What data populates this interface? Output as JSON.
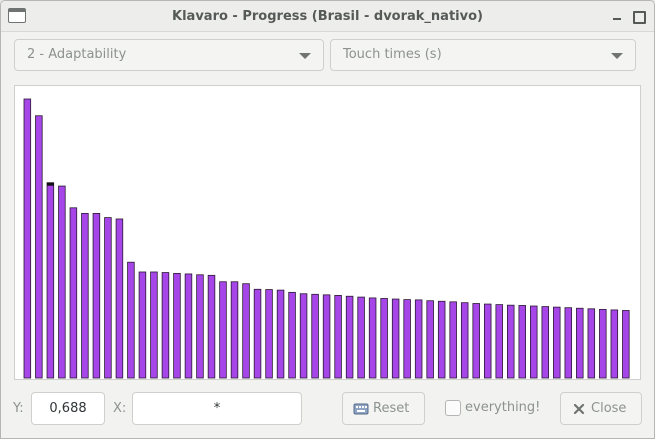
{
  "window": {
    "title": "Klavaro - Progress (Brasil - dvorak_nativo)",
    "icons": {
      "app": "window-icon",
      "minimize": "minimize-icon",
      "maximize": "maximize-icon"
    }
  },
  "controls": {
    "mode_select": {
      "value": "2 - Adaptability"
    },
    "metric_select": {
      "value": "Touch times (s)"
    }
  },
  "chart_data": {
    "type": "bar",
    "colors": {
      "bar": "#a646e8",
      "bar_outline": "#2a1a33",
      "highlight": "#111111"
    },
    "highlight_index": 2,
    "grid": false,
    "values": [
      1.0,
      0.94,
      0.7,
      0.688,
      0.61,
      0.59,
      0.59,
      0.575,
      0.57,
      0.415,
      0.38,
      0.38,
      0.378,
      0.375,
      0.373,
      0.37,
      0.368,
      0.345,
      0.345,
      0.338,
      0.318,
      0.317,
      0.315,
      0.307,
      0.302,
      0.3,
      0.298,
      0.296,
      0.293,
      0.29,
      0.287,
      0.285,
      0.283,
      0.281,
      0.28,
      0.277,
      0.275,
      0.273,
      0.27,
      0.267,
      0.265,
      0.263,
      0.261,
      0.26,
      0.258,
      0.256,
      0.254,
      0.252,
      0.25,
      0.248,
      0.246,
      0.244,
      0.242
    ]
  },
  "footer": {
    "y_label": "Y:",
    "y_value": "0,688",
    "x_label": "X:",
    "x_value": "*",
    "reset_label": "Reset",
    "everything_label": "everything!",
    "close_label": "Close",
    "icons": {
      "reset": "keyboard-icon",
      "close": "close-icon"
    }
  }
}
